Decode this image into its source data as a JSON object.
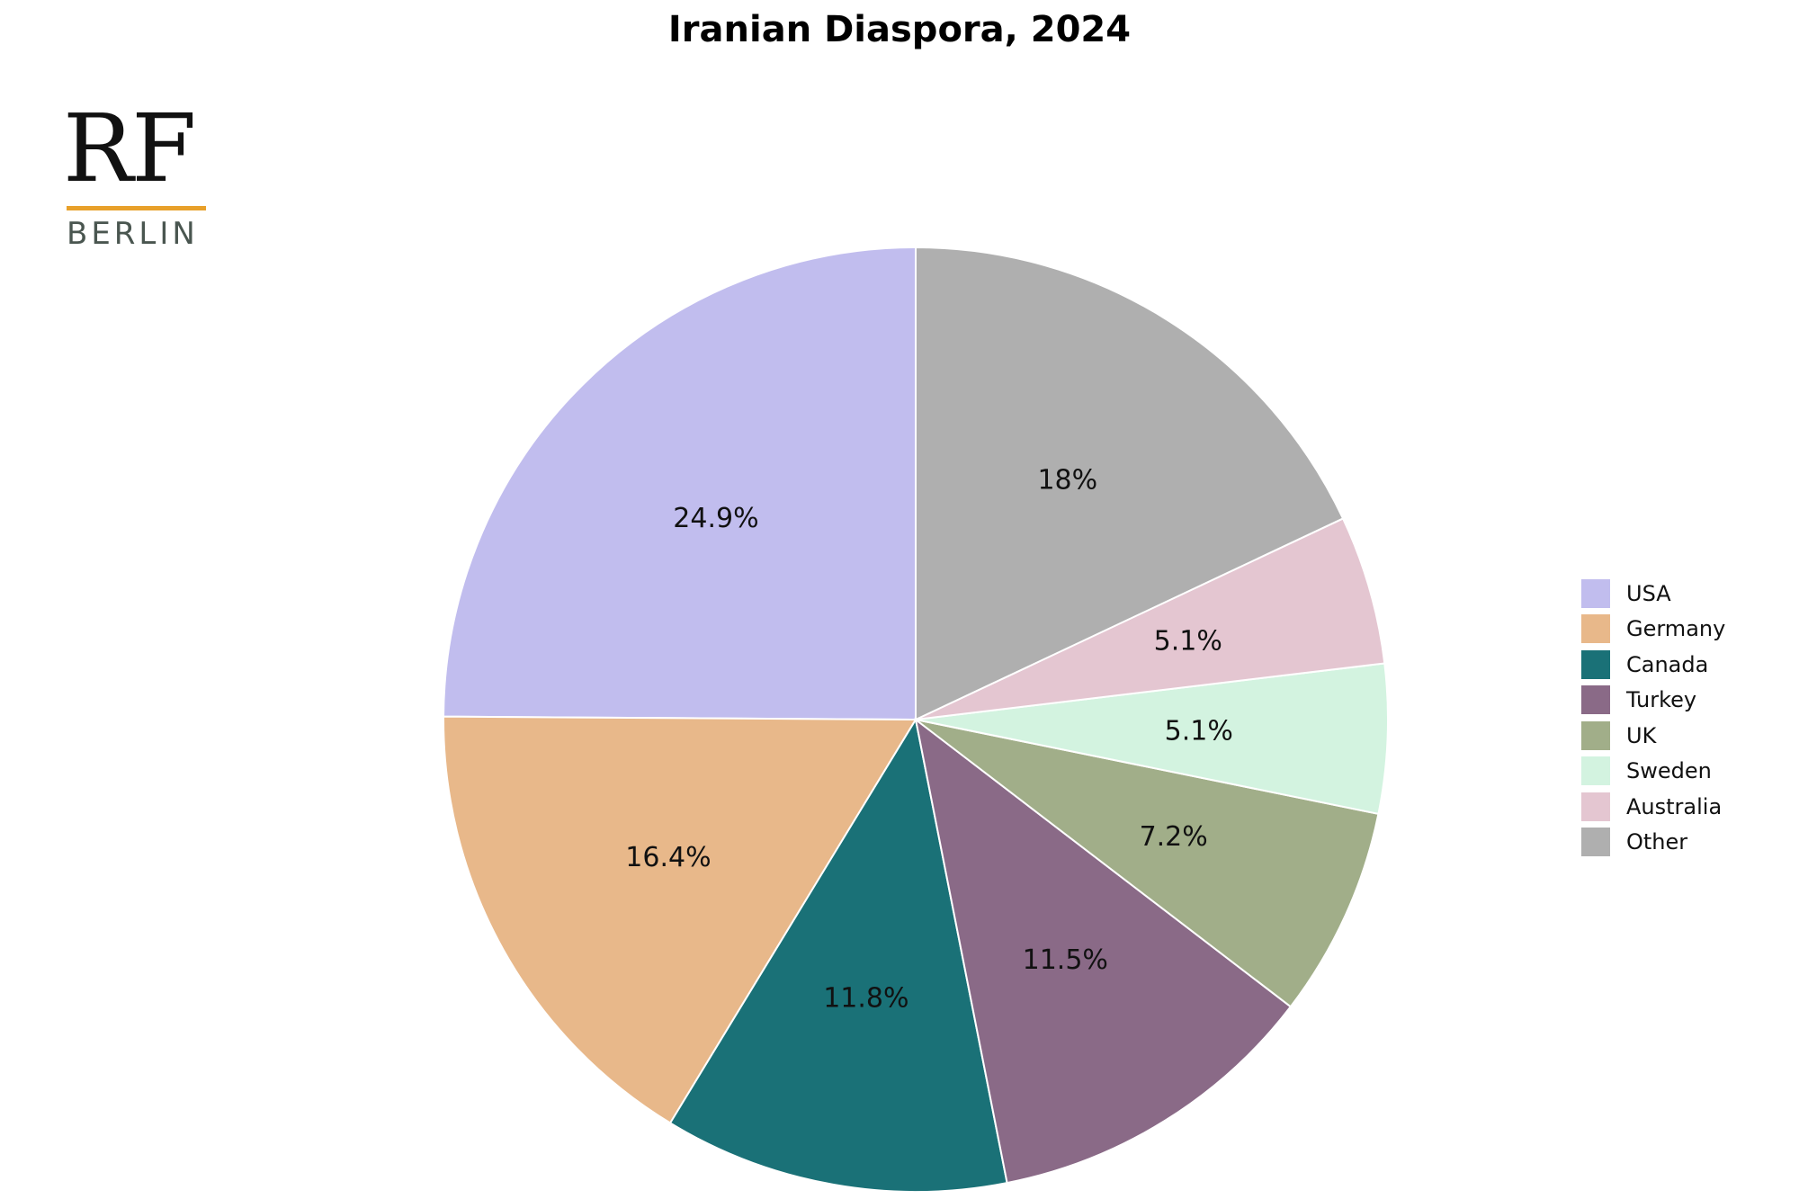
{
  "chart_data": {
    "type": "pie",
    "title": "Iranian Diaspora, 2024",
    "categories": [
      "USA",
      "Germany",
      "Canada",
      "Turkey",
      "UK",
      "Sweden",
      "Australia",
      "Other"
    ],
    "values": [
      24.9,
      16.4,
      11.8,
      11.5,
      7.2,
      5.1,
      5.1,
      18
    ],
    "value_labels": [
      "24.9%",
      "16.4%",
      "11.8%",
      "11.5%",
      "7.2%",
      "5.1%",
      "5.1%",
      "18%"
    ],
    "colors": [
      "#c1bdee",
      "#e8b88a",
      "#1a7177",
      "#8a6a87",
      "#a1ae89",
      "#d3f3e0",
      "#e4c6d1",
      "#afafaf"
    ],
    "start_angle_deg": 90,
    "direction": "counterclockwise",
    "legend_position": "right"
  },
  "logo": {
    "mark": "RF",
    "subtitle": "BERLIN",
    "accent_color": "#e8a02a"
  }
}
